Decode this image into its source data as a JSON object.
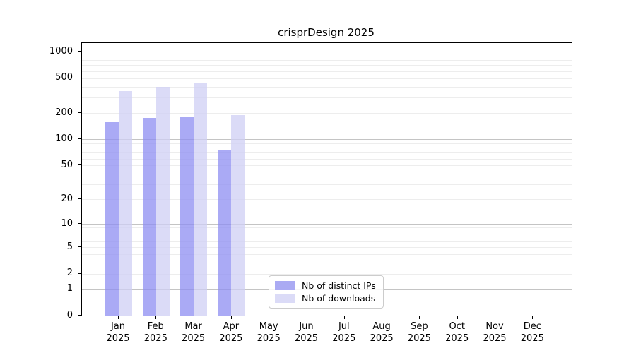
{
  "chart_data": {
    "type": "bar",
    "title": "crisprDesign 2025",
    "categories": [
      "Jan 2025",
      "Feb 2025",
      "Mar 2025",
      "Apr 2025",
      "May 2025",
      "Jun 2025",
      "Jul 2025",
      "Aug 2025",
      "Sep 2025",
      "Oct 2025",
      "Nov 2025",
      "Dec 2025"
    ],
    "series": [
      {
        "name": "Nb of distinct IPs",
        "swatch_color": "#aaaaf3",
        "fill_color": "rgba(142,142,242,0.75)",
        "values": [
          158,
          175,
          180,
          75,
          null,
          null,
          null,
          null,
          null,
          null,
          null,
          null
        ]
      },
      {
        "name": "Nb of downloads",
        "swatch_color": "#dbdbf7",
        "fill_color": "rgba(207,207,244,0.75)",
        "values": [
          355,
          400,
          435,
          190,
          null,
          null,
          null,
          null,
          null,
          null,
          null,
          null
        ]
      }
    ],
    "yscale": "log10(value+1)",
    "ytick_labels": [
      0,
      1,
      2,
      5,
      10,
      20,
      50,
      100,
      200,
      500,
      1000
    ],
    "ylim": [
      0,
      1250
    ],
    "xlabel": "",
    "ylabel": "",
    "grid": true,
    "grid_major_decades": [
      1,
      10,
      100,
      1000
    ],
    "legend_position": "lower center"
  },
  "colors": {
    "grid_minor": "#ededed",
    "grid_major": "#c4c4c4",
    "axis": "#000000",
    "background": "#ffffff"
  }
}
